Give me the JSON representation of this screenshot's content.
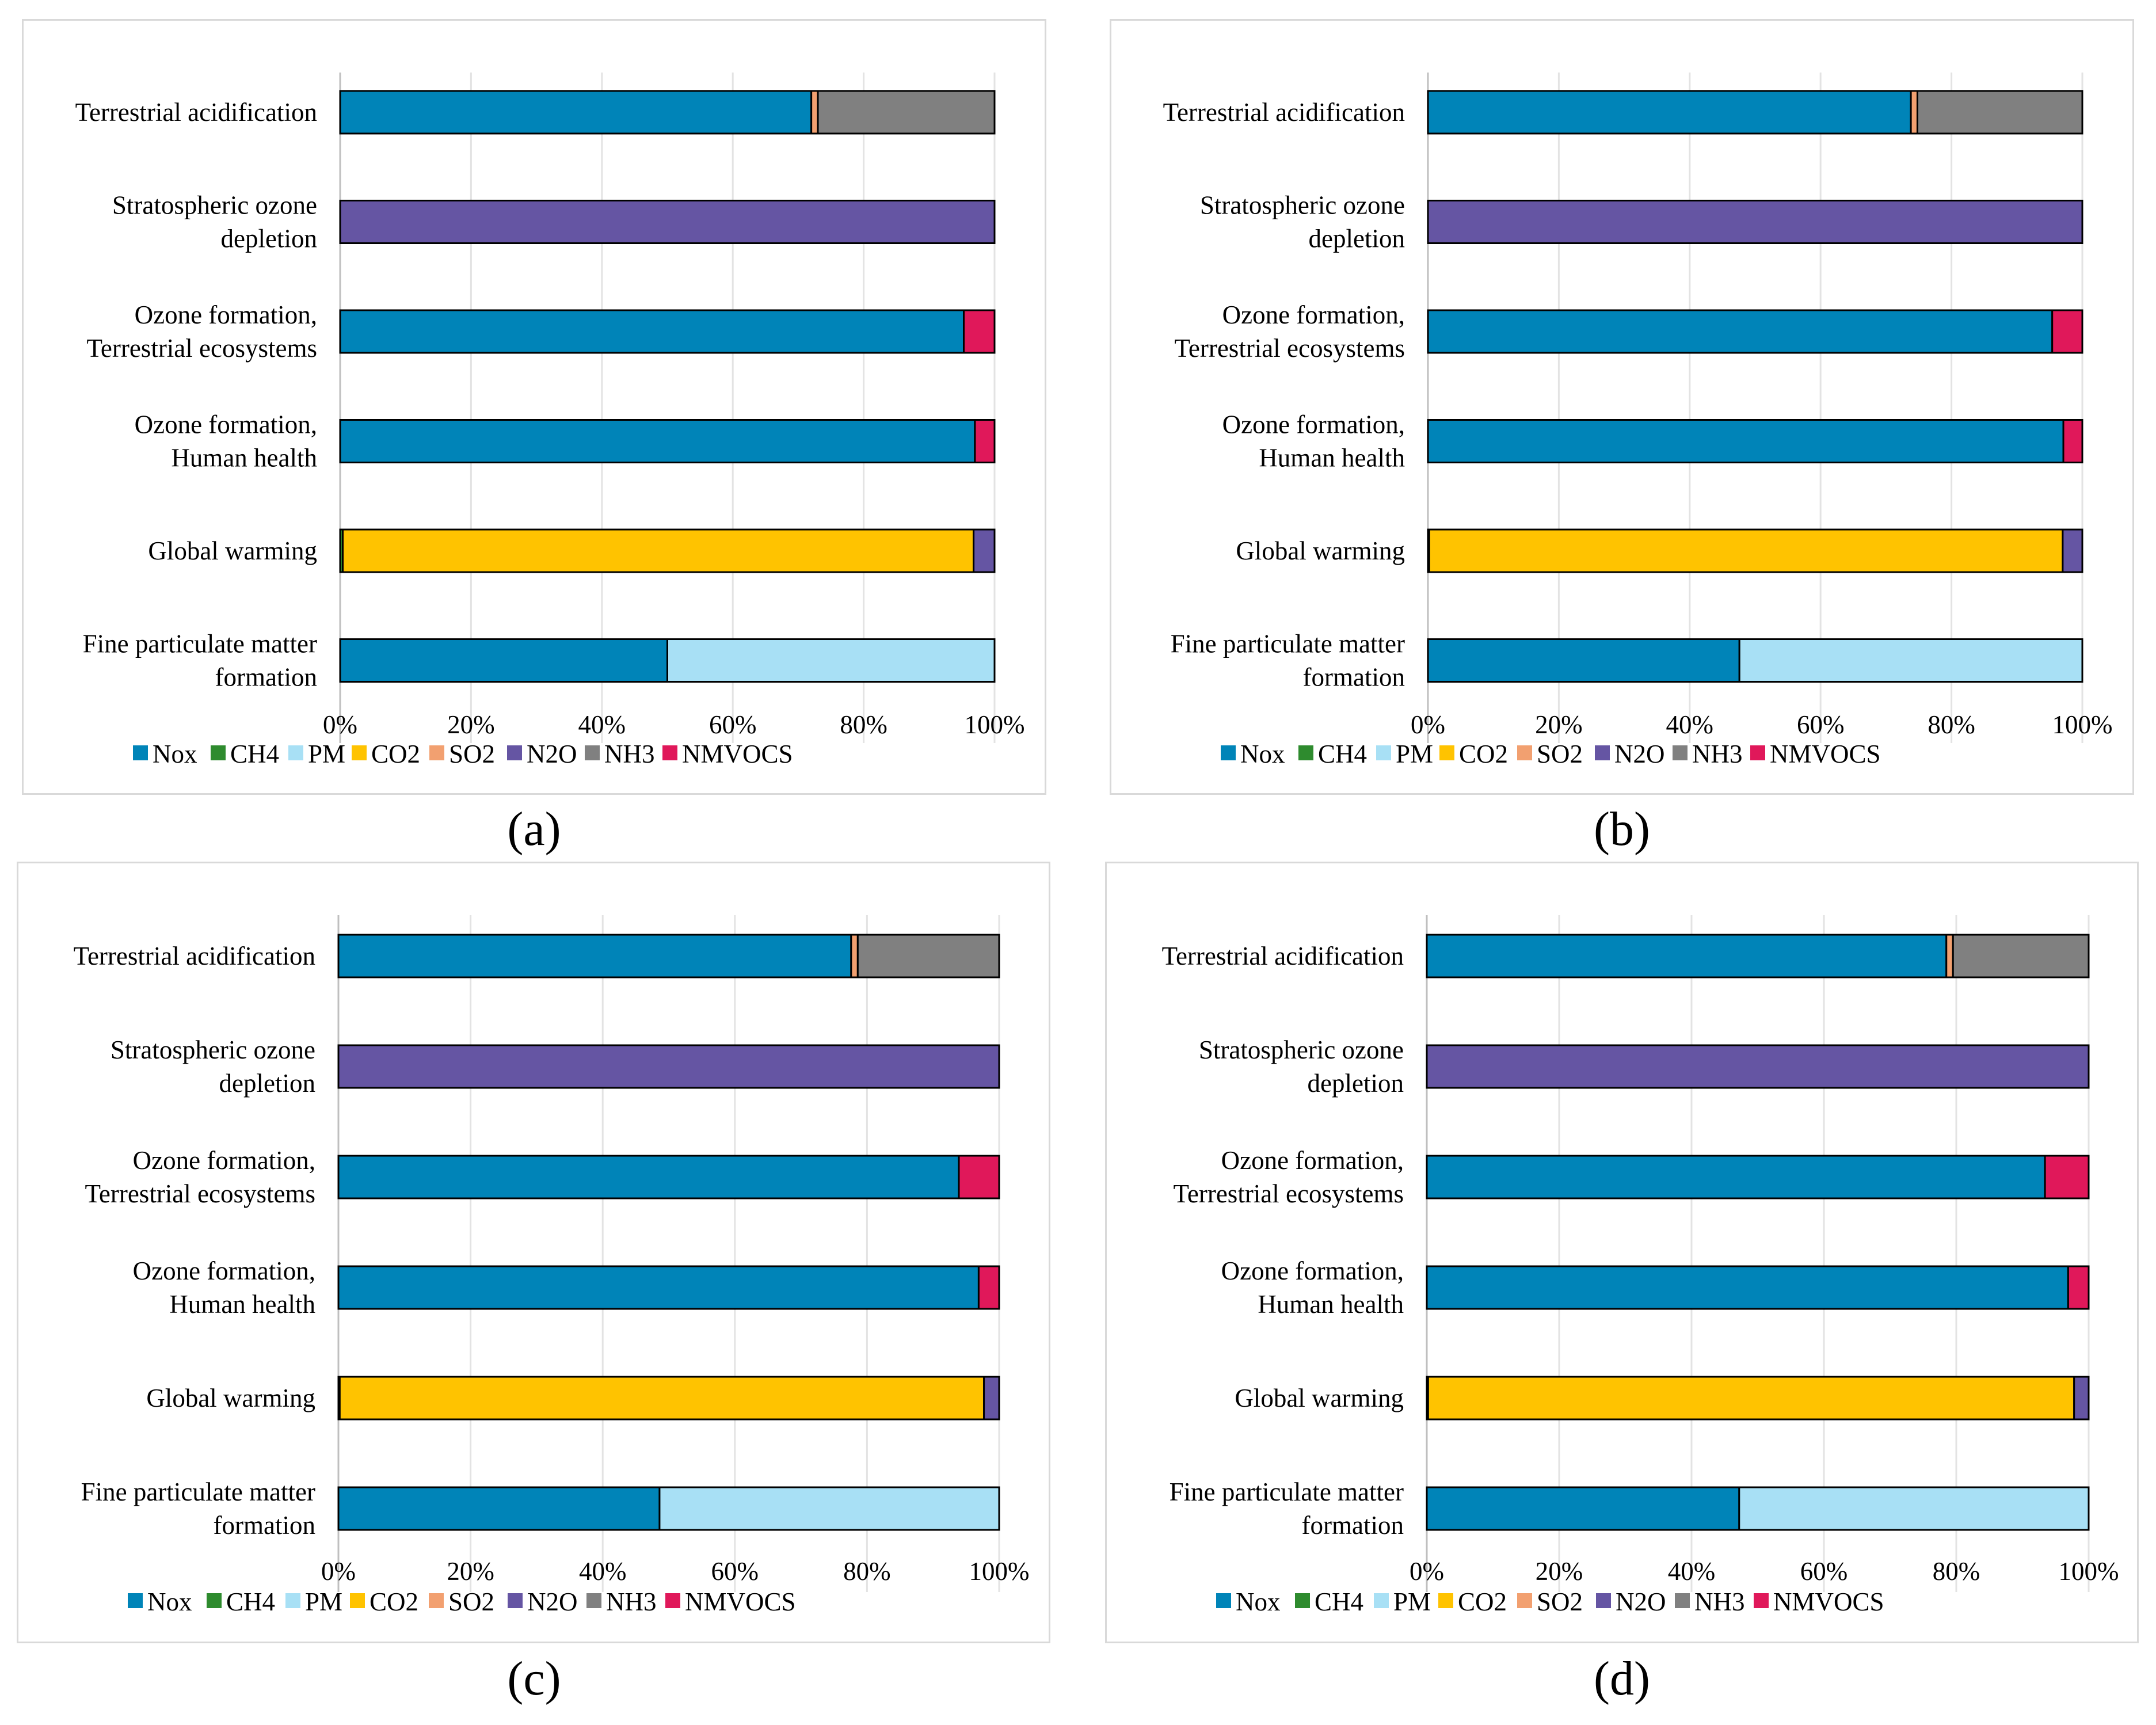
{
  "legend": [
    {
      "key": "Nox",
      "label": "Nox",
      "color": "#0084B8"
    },
    {
      "key": "CH4",
      "label": "CH4",
      "color": "#2E8B2E"
    },
    {
      "key": "PM",
      "label": "PM",
      "color": "#A8E0F5"
    },
    {
      "key": "CO2",
      "label": "CO2",
      "color": "#FFC300"
    },
    {
      "key": "SO2",
      "label": "SO2",
      "color": "#F2A070"
    },
    {
      "key": "N2O",
      "label": "N2O",
      "color": "#6555A3"
    },
    {
      "key": "NH3",
      "label": "NH3",
      "color": "#808080"
    },
    {
      "key": "NMVOCS",
      "label": "NMVOCS",
      "color": "#E0185A"
    }
  ],
  "chart_data": [
    {
      "type": "bar",
      "orientation": "horizontal",
      "stacked": "percent",
      "caption": "(a)",
      "categories": [
        "Terrestrial acidification",
        "Stratospheric ozone depletion",
        "Ozone formation, Terrestrial ecosystems",
        "Ozone formation, Human health",
        "Global warming",
        "Fine particulate matter formation"
      ],
      "category_lines": [
        [
          "Terrestrial acidification"
        ],
        [
          "Stratospheric ozone",
          "depletion"
        ],
        [
          "Ozone formation,",
          "Terrestrial ecosystems"
        ],
        [
          "Ozone formation,",
          "Human health"
        ],
        [
          "Global warming"
        ],
        [
          "Fine particulate matter",
          "formation"
        ]
      ],
      "xticks": [
        "0%",
        "20%",
        "40%",
        "60%",
        "80%",
        "100%"
      ],
      "xlim": [
        0,
        100
      ],
      "series": [
        {
          "name": "Nox",
          "values": [
            72,
            0,
            95.3,
            97,
            0,
            50
          ]
        },
        {
          "name": "CH4",
          "values": [
            0,
            0,
            0,
            0,
            0.4,
            0
          ]
        },
        {
          "name": "PM",
          "values": [
            0,
            0,
            0,
            0,
            0,
            50
          ]
        },
        {
          "name": "CO2",
          "values": [
            0,
            0,
            0,
            0,
            96.4,
            0
          ]
        },
        {
          "name": "SO2",
          "values": [
            1,
            0,
            0,
            0,
            0,
            0
          ]
        },
        {
          "name": "N2O",
          "values": [
            0,
            100,
            0,
            0,
            3.2,
            0
          ]
        },
        {
          "name": "NH3",
          "values": [
            27,
            0,
            0,
            0,
            0,
            0
          ]
        },
        {
          "name": "NMVOCS",
          "values": [
            0,
            0,
            4.7,
            3,
            0,
            0
          ]
        }
      ]
    },
    {
      "type": "bar",
      "orientation": "horizontal",
      "stacked": "percent",
      "caption": "(b)",
      "categories": [
        "Terrestrial acidification",
        "Stratospheric ozone depletion",
        "Ozone formation, Terrestrial ecosystems",
        "Ozone formation, Human health",
        "Global warming",
        "Fine particulate matter formation"
      ],
      "category_lines": [
        [
          "Terrestrial acidification"
        ],
        [
          "Stratospheric ozone",
          "depletion"
        ],
        [
          "Ozone formation,",
          "Terrestrial ecosystems"
        ],
        [
          "Ozone formation,",
          "Human health"
        ],
        [
          "Global warming"
        ],
        [
          "Fine particulate matter",
          "formation"
        ]
      ],
      "xticks": [
        "0%",
        "20%",
        "40%",
        "60%",
        "80%",
        "100%"
      ],
      "xlim": [
        0,
        100
      ],
      "series": [
        {
          "name": "Nox",
          "values": [
            73.8,
            0,
            95.4,
            97.1,
            0,
            47.6
          ]
        },
        {
          "name": "CH4",
          "values": [
            0,
            0,
            0,
            0,
            0.2,
            0
          ]
        },
        {
          "name": "PM",
          "values": [
            0,
            0,
            0,
            0,
            0,
            52.4
          ]
        },
        {
          "name": "CO2",
          "values": [
            0,
            0,
            0,
            0,
            96.8,
            0
          ]
        },
        {
          "name": "SO2",
          "values": [
            1,
            0,
            0,
            0,
            0,
            0
          ]
        },
        {
          "name": "N2O",
          "values": [
            0,
            100,
            0,
            0,
            3,
            0
          ]
        },
        {
          "name": "NH3",
          "values": [
            25.2,
            0,
            0,
            0,
            0,
            0
          ]
        },
        {
          "name": "NMVOCS",
          "values": [
            0,
            0,
            4.6,
            2.9,
            0,
            0
          ]
        }
      ]
    },
    {
      "type": "bar",
      "orientation": "horizontal",
      "stacked": "percent",
      "caption": "(c)",
      "categories": [
        "Terrestrial acidification",
        "Stratospheric ozone depletion",
        "Ozone formation, Terrestrial ecosystems",
        "Ozone formation, Human health",
        "Global warming",
        "Fine particulate matter formation"
      ],
      "category_lines": [
        [
          "Terrestrial acidification"
        ],
        [
          "Stratospheric ozone",
          "depletion"
        ],
        [
          "Ozone formation,",
          "Terrestrial ecosystems"
        ],
        [
          "Ozone formation,",
          "Human health"
        ],
        [
          "Global warming"
        ],
        [
          "Fine particulate matter",
          "formation"
        ]
      ],
      "xticks": [
        "0%",
        "20%",
        "40%",
        "60%",
        "80%",
        "100%"
      ],
      "xlim": [
        0,
        100
      ],
      "series": [
        {
          "name": "Nox",
          "values": [
            77.6,
            0,
            93.9,
            96.9,
            0,
            48.6
          ]
        },
        {
          "name": "CH4",
          "values": [
            0,
            0,
            0,
            0,
            0.2,
            0
          ]
        },
        {
          "name": "PM",
          "values": [
            0,
            0,
            0,
            0,
            0,
            51.4
          ]
        },
        {
          "name": "CO2",
          "values": [
            0,
            0,
            0,
            0,
            97.5,
            0
          ]
        },
        {
          "name": "SO2",
          "values": [
            1,
            0,
            0,
            0,
            0,
            0
          ]
        },
        {
          "name": "N2O",
          "values": [
            0,
            100,
            0,
            0,
            2.3,
            0
          ]
        },
        {
          "name": "NH3",
          "values": [
            21.4,
            0,
            0,
            0,
            0,
            0
          ]
        },
        {
          "name": "NMVOCS",
          "values": [
            0,
            0,
            6.1,
            3.1,
            0,
            0
          ]
        }
      ]
    },
    {
      "type": "bar",
      "orientation": "horizontal",
      "stacked": "percent",
      "caption": "(d)",
      "categories": [
        "Terrestrial acidification",
        "Stratospheric ozone depletion",
        "Ozone formation, Terrestrial ecosystems",
        "Ozone formation, Human health",
        "Global warming",
        "Fine particulate matter formation"
      ],
      "category_lines": [
        [
          "Terrestrial acidification"
        ],
        [
          "Stratospheric ozone",
          "depletion"
        ],
        [
          "Ozone formation,",
          "Terrestrial ecosystems"
        ],
        [
          "Ozone formation,",
          "Human health"
        ],
        [
          "Global warming"
        ],
        [
          "Fine particulate matter",
          "formation"
        ]
      ],
      "xticks": [
        "0%",
        "20%",
        "40%",
        "60%",
        "80%",
        "100%"
      ],
      "xlim": [
        0,
        100
      ],
      "series": [
        {
          "name": "Nox",
          "values": [
            78.5,
            0,
            93.4,
            96.9,
            0,
            47.2
          ]
        },
        {
          "name": "CH4",
          "values": [
            0,
            0,
            0,
            0,
            0.2,
            0
          ]
        },
        {
          "name": "PM",
          "values": [
            0,
            0,
            0,
            0,
            0,
            52.8
          ]
        },
        {
          "name": "CO2",
          "values": [
            0,
            0,
            0,
            0,
            97.6,
            0
          ]
        },
        {
          "name": "SO2",
          "values": [
            1,
            0,
            0,
            0,
            0,
            0
          ]
        },
        {
          "name": "N2O",
          "values": [
            0,
            100,
            0,
            0,
            2.2,
            0
          ]
        },
        {
          "name": "NH3",
          "values": [
            20.5,
            0,
            0,
            0,
            0,
            0
          ]
        },
        {
          "name": "NMVOCS",
          "values": [
            0,
            0,
            6.6,
            3.1,
            0,
            0
          ]
        }
      ]
    }
  ]
}
